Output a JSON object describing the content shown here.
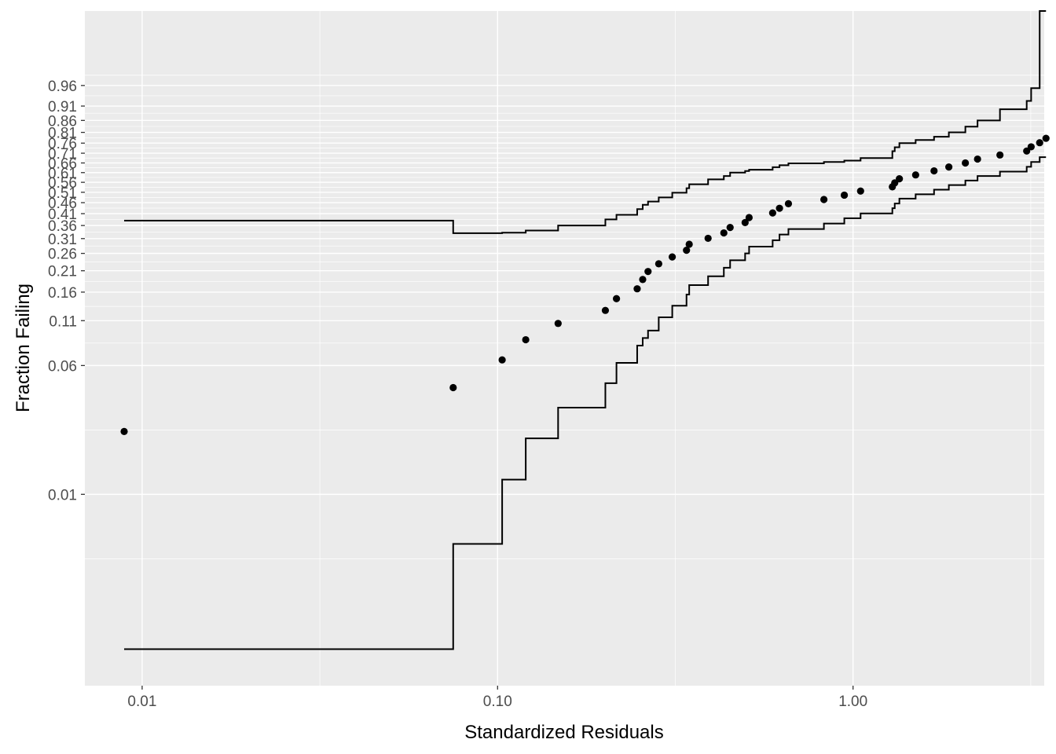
{
  "chart_data": {
    "type": "scatter",
    "title": "",
    "xlabel": "Standardized Residuals",
    "ylabel": "Fraction Failing",
    "x_scale": "log10",
    "y_scale": "weibull-probability",
    "xlim": [
      0.0069,
      3.45
    ],
    "ylim": [
      0.000675,
      0.9999
    ],
    "x_ticks": [
      0.01,
      0.1,
      1.0
    ],
    "x_tick_labels": [
      "0.01",
      "0.10",
      "1.00"
    ],
    "y_ticks": [
      0.01,
      0.06,
      0.11,
      0.16,
      0.21,
      0.26,
      0.31,
      0.36,
      0.41,
      0.46,
      0.51,
      0.56,
      0.61,
      0.66,
      0.71,
      0.76,
      0.81,
      0.86,
      0.91,
      0.96
    ],
    "y_tick_labels": [
      "0.01",
      "0.06",
      "0.11",
      "0.16",
      "0.21",
      "0.26",
      "0.31",
      "0.36",
      "0.41",
      "0.46",
      "0.51",
      "0.56",
      "0.61",
      "0.66",
      "0.71",
      "0.76",
      "0.81",
      "0.86",
      "0.91",
      "0.96"
    ],
    "grid": true,
    "legend": "none",
    "colors": {
      "panel_bg": "#EBEBEB",
      "grid_major": "#FFFFFF",
      "points": "#000000",
      "bands": "#000000",
      "tick_text": "#4D4D4D"
    },
    "series": [
      {
        "name": "",
        "kind": "points",
        "x": [
          0.0089,
          0.075,
          0.103,
          0.12,
          0.148,
          0.201,
          0.216,
          0.247,
          0.256,
          0.265,
          0.284,
          0.31,
          0.34,
          0.346,
          0.391,
          0.433,
          0.451,
          0.497,
          0.51,
          0.594,
          0.621,
          0.658,
          0.828,
          0.945,
          1.05,
          1.29,
          1.31,
          1.35,
          1.5,
          1.69,
          1.86,
          2.07,
          2.24,
          2.59,
          3.08,
          3.17,
          3.35,
          3.49
        ],
        "y": [
          0.0241,
          0.0443,
          0.0648,
          0.0852,
          0.106,
          0.126,
          0.147,
          0.167,
          0.188,
          0.208,
          0.229,
          0.249,
          0.27,
          0.29,
          0.311,
          0.331,
          0.352,
          0.372,
          0.393,
          0.413,
          0.434,
          0.455,
          0.475,
          0.496,
          0.516,
          0.537,
          0.557,
          0.578,
          0.598,
          0.619,
          0.639,
          0.66,
          0.68,
          0.701,
          0.721,
          0.742,
          0.762,
          0.783
        ]
      },
      {
        "name": "",
        "kind": "step",
        "x": [
          0.0089,
          0.075,
          0.075,
          0.103,
          0.103,
          0.12,
          0.12,
          0.148,
          0.148,
          0.201,
          0.201,
          0.216,
          0.216,
          0.247,
          0.247,
          0.256,
          0.256,
          0.265,
          0.265,
          0.284,
          0.284,
          0.31,
          0.31,
          0.34,
          0.34,
          0.346,
          0.346,
          0.391,
          0.391,
          0.433,
          0.433,
          0.451,
          0.451,
          0.497,
          0.497,
          0.51,
          0.51,
          0.594,
          0.594,
          0.621,
          0.621,
          0.658,
          0.658,
          0.828,
          0.828,
          0.945,
          0.945,
          1.05,
          1.05,
          1.29,
          1.29,
          1.31,
          1.31,
          1.35,
          1.35,
          1.5,
          1.5,
          1.69,
          1.69,
          1.86,
          1.86,
          2.07,
          2.07,
          2.24,
          2.24,
          2.59,
          2.59,
          3.08,
          3.08,
          3.17,
          3.17,
          3.35,
          3.35,
          3.49
        ],
        "y": [
          0.38,
          0.38,
          0.33,
          0.33,
          0.332,
          0.332,
          0.34,
          0.34,
          0.36,
          0.36,
          0.385,
          0.385,
          0.405,
          0.405,
          0.43,
          0.43,
          0.45,
          0.45,
          0.465,
          0.465,
          0.485,
          0.485,
          0.508,
          0.508,
          0.53,
          0.53,
          0.55,
          0.55,
          0.575,
          0.575,
          0.592,
          0.592,
          0.61,
          0.61,
          0.618,
          0.618,
          0.625,
          0.625,
          0.638,
          0.638,
          0.648,
          0.648,
          0.658,
          0.658,
          0.665,
          0.665,
          0.672,
          0.672,
          0.685,
          0.685,
          0.72,
          0.72,
          0.74,
          0.74,
          0.76,
          0.76,
          0.775,
          0.775,
          0.79,
          0.79,
          0.81,
          0.81,
          0.835,
          0.835,
          0.86,
          0.86,
          0.9,
          0.9,
          0.925,
          0.925,
          0.955,
          0.955,
          0.9999,
          0.9999
        ]
      },
      {
        "name": "",
        "kind": "step",
        "x": [
          0.0089,
          0.075,
          0.075,
          0.103,
          0.103,
          0.12,
          0.12,
          0.148,
          0.148,
          0.201,
          0.201,
          0.216,
          0.216,
          0.247,
          0.247,
          0.256,
          0.256,
          0.265,
          0.265,
          0.284,
          0.284,
          0.31,
          0.31,
          0.34,
          0.34,
          0.346,
          0.346,
          0.391,
          0.391,
          0.433,
          0.433,
          0.451,
          0.451,
          0.497,
          0.497,
          0.51,
          0.51,
          0.594,
          0.594,
          0.621,
          0.621,
          0.658,
          0.658,
          0.828,
          0.828,
          0.945,
          0.945,
          1.05,
          1.05,
          1.29,
          1.29,
          1.31,
          1.31,
          1.35,
          1.35,
          1.5,
          1.5,
          1.69,
          1.69,
          1.86,
          1.86,
          2.07,
          2.07,
          2.24,
          2.24,
          2.59,
          2.59,
          3.08,
          3.08,
          3.17,
          3.17,
          3.35,
          3.35,
          3.49
        ],
        "y": [
          0.00113,
          0.00113,
          0.00498,
          0.00498,
          0.0123,
          0.0123,
          0.0219,
          0.0219,
          0.0336,
          0.0336,
          0.0471,
          0.0471,
          0.0622,
          0.0622,
          0.0787,
          0.0787,
          0.0872,
          0.0872,
          0.0964,
          0.0964,
          0.115,
          0.115,
          0.134,
          0.134,
          0.155,
          0.155,
          0.175,
          0.175,
          0.196,
          0.196,
          0.218,
          0.218,
          0.239,
          0.239,
          0.26,
          0.26,
          0.282,
          0.282,
          0.304,
          0.304,
          0.325,
          0.325,
          0.346,
          0.346,
          0.368,
          0.368,
          0.39,
          0.39,
          0.411,
          0.411,
          0.434,
          0.434,
          0.456,
          0.456,
          0.479,
          0.479,
          0.5,
          0.5,
          0.523,
          0.523,
          0.546,
          0.546,
          0.569,
          0.569,
          0.592,
          0.592,
          0.615,
          0.615,
          0.64,
          0.64,
          0.665,
          0.665,
          0.69,
          0.69
        ]
      }
    ]
  }
}
